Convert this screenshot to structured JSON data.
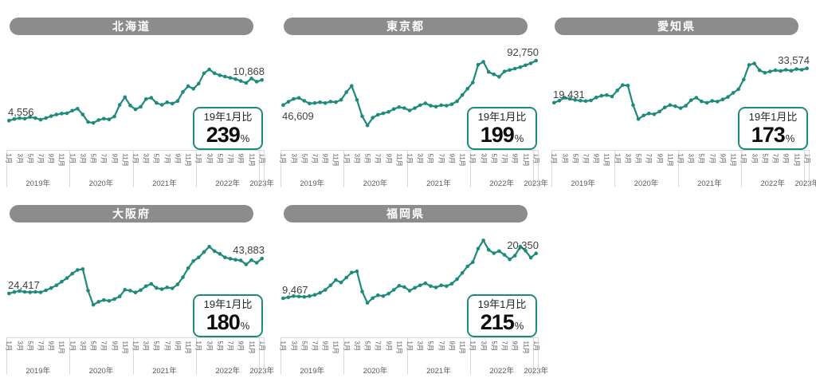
{
  "colors": {
    "teal": "#1e8a7b",
    "title_gray": "#8c8c8c",
    "label_dark": "#3f3f3f",
    "axis_text": "#595959",
    "axis_line": "#d9d9d9",
    "ratio_num": "#0d0d0d"
  },
  "ratio_box": {
    "label": "19年1月比",
    "percent_suffix": "%"
  },
  "x_axis": {
    "month_labels": [
      "1月",
      "3月",
      "5月",
      "7月",
      "9月",
      "11月"
    ],
    "years": [
      {
        "label": "2019年",
        "months": 12
      },
      {
        "label": "2020年",
        "months": 12
      },
      {
        "label": "2021年",
        "months": 12
      },
      {
        "label": "2022年",
        "months": 12
      },
      {
        "label": "2023年",
        "months": 1
      }
    ]
  },
  "chart_data": [
    {
      "type": "line",
      "title": "北海道",
      "start_label": "4,556",
      "end_label": "10,868",
      "ratio_percent": "239",
      "start_label_position": "above",
      "x_start": "2019年1月",
      "x_end": "2023年1月",
      "x_interval": "monthly",
      "n_points": 49,
      "ylim": [
        0,
        16600
      ],
      "values": [
        4556,
        4800,
        4950,
        4850,
        5100,
        4950,
        4700,
        4950,
        5250,
        5500,
        5650,
        5700,
        6100,
        6400,
        5500,
        4350,
        4200,
        4650,
        4850,
        4750,
        5200,
        7000,
        8200,
        6900,
        6300,
        6700,
        7900,
        8100,
        7300,
        7000,
        7400,
        7200,
        7600,
        9000,
        9900,
        9500,
        10300,
        11900,
        12500,
        11900,
        11600,
        11400,
        11200,
        11000,
        10700,
        10400,
        11100,
        10600,
        10868
      ]
    },
    {
      "type": "line",
      "title": "東京都",
      "start_label": "46,609",
      "end_label": "92,750",
      "ratio_percent": "199",
      "start_label_position": "below",
      "x_start": "2019年1月",
      "x_end": "2023年1月",
      "x_interval": "monthly",
      "n_points": 49,
      "ylim": [
        0,
        111000
      ],
      "values": [
        46609,
        50000,
        53000,
        54000,
        51000,
        48200,
        48800,
        49500,
        48700,
        50200,
        49600,
        52000,
        60000,
        66500,
        52000,
        35000,
        25500,
        33500,
        36500,
        38000,
        39500,
        42500,
        44500,
        43500,
        41000,
        43500,
        46500,
        48500,
        46000,
        45000,
        46500,
        46000,
        47500,
        50500,
        57000,
        63500,
        70000,
        88500,
        91500,
        81000,
        78500,
        76000,
        81500,
        83000,
        84500,
        86000,
        88000,
        90000,
        92750
      ]
    },
    {
      "type": "line",
      "title": "愛知県",
      "start_label": "19,431",
      "end_label": "33,574",
      "ratio_percent": "173",
      "start_label_position": "above",
      "x_start": "2019年1月",
      "x_end": "2023年1月",
      "x_interval": "monthly",
      "n_points": 49,
      "ylim": [
        0,
        44000
      ],
      "values": [
        19431,
        20300,
        21500,
        21000,
        20600,
        20300,
        20100,
        20400,
        21600,
        22300,
        22600,
        22000,
        24500,
        26700,
        26500,
        18500,
        12700,
        14200,
        15000,
        14700,
        15800,
        17500,
        18500,
        18000,
        17200,
        18200,
        20500,
        21500,
        20000,
        19400,
        20200,
        19900,
        20800,
        21800,
        23500,
        25000,
        29000,
        35000,
        35600,
        32800,
        31800,
        32300,
        32800,
        32500,
        33000,
        32600,
        33300,
        33000,
        33574
      ]
    },
    {
      "type": "line",
      "title": "大阪府",
      "start_label": "24,417",
      "end_label": "43,883",
      "ratio_percent": "180",
      "start_label_position": "above",
      "x_start": "2019年1月",
      "x_end": "2023年1月",
      "x_interval": "monthly",
      "n_points": 49,
      "ylim": [
        0,
        59500
      ],
      "values": [
        24417,
        25200,
        25800,
        25300,
        25100,
        25300,
        25100,
        26200,
        27500,
        29000,
        31000,
        33000,
        35500,
        37500,
        38000,
        26000,
        18100,
        19800,
        20800,
        20300,
        21300,
        22800,
        26500,
        26000,
        25000,
        26300,
        28500,
        29800,
        27500,
        26800,
        27800,
        27300,
        29500,
        33500,
        38500,
        42500,
        44500,
        47500,
        50500,
        48000,
        46500,
        44500,
        43800,
        43200,
        42800,
        40600,
        43000,
        41500,
        43883
      ]
    },
    {
      "type": "line",
      "title": "福岡県",
      "start_label": "9,467",
      "end_label": "20,350",
      "ratio_percent": "215",
      "start_label_position": "above",
      "x_start": "2019年1月",
      "x_end": "2023年1月",
      "x_interval": "monthly",
      "n_points": 49,
      "ylim": [
        0,
        25900
      ],
      "values": [
        9467,
        9700,
        10000,
        9900,
        9800,
        10000,
        10300,
        10800,
        11500,
        12600,
        13900,
        13300,
        14500,
        15700,
        16000,
        11100,
        8350,
        9500,
        10200,
        10000,
        10600,
        11500,
        12500,
        12200,
        11300,
        12000,
        12600,
        13100,
        12400,
        12100,
        12600,
        12400,
        13000,
        14100,
        15600,
        17200,
        18200,
        21500,
        23500,
        21200,
        20400,
        20900,
        20000,
        18900,
        19800,
        22000,
        21000,
        19300,
        20350
      ]
    }
  ]
}
